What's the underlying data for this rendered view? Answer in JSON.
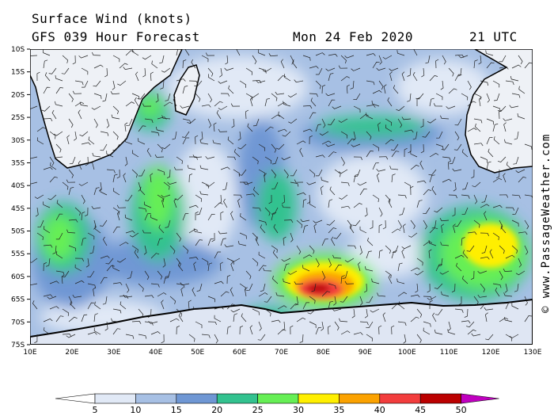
{
  "header": {
    "title": "Surface Wind (knots)",
    "forecast": "GFS 039 Hour Forecast",
    "date": "Mon 24 Feb 2020",
    "time": "21 UTC"
  },
  "map": {
    "lat_labels": [
      "10S",
      "15S",
      "20S",
      "25S",
      "30S",
      "35S",
      "40S",
      "45S",
      "50S",
      "55S",
      "60S",
      "65S",
      "70S",
      "75S"
    ],
    "lon_labels": [
      "10E",
      "20E",
      "30E",
      "40E",
      "50E",
      "60E",
      "70E",
      "80E",
      "90E",
      "100E",
      "110E",
      "120E",
      "130E"
    ],
    "extent": {
      "lon_min": 10,
      "lon_max": 130,
      "lat_min": -75,
      "lat_max": -10
    }
  },
  "colorbar": {
    "labels": [
      "5",
      "10",
      "15",
      "20",
      "25",
      "30",
      "35",
      "40",
      "45",
      "50"
    ],
    "colors": [
      "#ffffff",
      "#e1e9f6",
      "#a7c0e4",
      "#6f97d4",
      "#33c28f",
      "#66ef55",
      "#ffef00",
      "#fba200",
      "#f23d3d",
      "#bb0000",
      "#c000c0"
    ]
  },
  "watermark": "© www.PassageWeather.com"
}
